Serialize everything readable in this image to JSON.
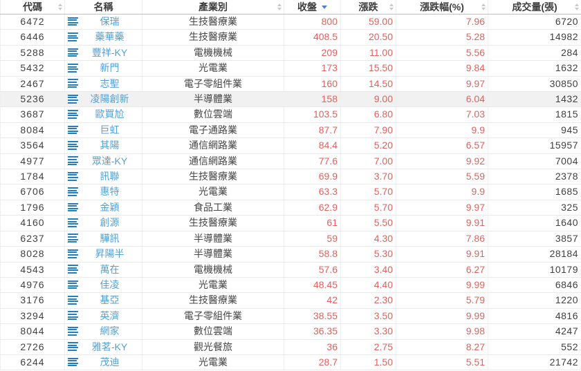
{
  "colors": {
    "name_link": "#54a0d4",
    "list_icon_blue": "#1e7ec0",
    "value_red": "#e2615c",
    "text_dark": "#404040",
    "sort_inactive": "#c9c9c9",
    "sort_active_blue": "#4f7ec1",
    "highlight_row_bg": "#f1f1f1"
  },
  "sort_state": {
    "column": "收盤",
    "direction": "desc"
  },
  "table": {
    "columns": [
      {
        "label": "代碼",
        "sortable": true,
        "active": false
      },
      {
        "label": "名稱",
        "sortable": false,
        "active": false
      },
      {
        "label": "產業別",
        "sortable": true,
        "active": false
      },
      {
        "label": "收盤",
        "sortable": true,
        "active": true
      },
      {
        "label": "漲跌",
        "sortable": true,
        "active": false
      },
      {
        "label": "漲跌幅(%)",
        "sortable": true,
        "active": false
      },
      {
        "label": "成交量(張)",
        "sortable": true,
        "active": false
      }
    ],
    "rows": [
      {
        "code": "6472",
        "name": "保瑞",
        "industry": "生技醫療業",
        "close": "800",
        "change": "59.00",
        "change_pct": "7.96",
        "volume": "6720",
        "highlighted": false
      },
      {
        "code": "6446",
        "name": "藥華藥",
        "industry": "生技醫療業",
        "close": "408.5",
        "change": "20.50",
        "change_pct": "5.28",
        "volume": "14982",
        "highlighted": false
      },
      {
        "code": "5288",
        "name": "豐祥-KY",
        "industry": "電機機械",
        "close": "209",
        "change": "11.00",
        "change_pct": "5.56",
        "volume": "284",
        "highlighted": false
      },
      {
        "code": "5432",
        "name": "新門",
        "industry": "光電業",
        "close": "173",
        "change": "15.50",
        "change_pct": "9.84",
        "volume": "1632",
        "highlighted": false
      },
      {
        "code": "2467",
        "name": "志聖",
        "industry": "電子零組件業",
        "close": "160",
        "change": "14.50",
        "change_pct": "9.97",
        "volume": "30850",
        "highlighted": false
      },
      {
        "code": "5236",
        "name": "凌陽創新",
        "industry": "半導體業",
        "close": "158",
        "change": "9.00",
        "change_pct": "6.04",
        "volume": "1432",
        "highlighted": true
      },
      {
        "code": "3687",
        "name": "歐買尬",
        "industry": "數位雲端",
        "close": "103.5",
        "change": "6.80",
        "change_pct": "7.03",
        "volume": "1815",
        "highlighted": false
      },
      {
        "code": "8084",
        "name": "巨虹",
        "industry": "電子通路業",
        "close": "87.7",
        "change": "7.90",
        "change_pct": "9.9",
        "volume": "945",
        "highlighted": false
      },
      {
        "code": "3564",
        "name": "其陽",
        "industry": "通信網路業",
        "close": "84.4",
        "change": "5.20",
        "change_pct": "6.57",
        "volume": "15957",
        "highlighted": false
      },
      {
        "code": "4977",
        "name": "眾達-KY",
        "industry": "通信網路業",
        "close": "77.6",
        "change": "7.00",
        "change_pct": "9.92",
        "volume": "7004",
        "highlighted": false
      },
      {
        "code": "1784",
        "name": "訊聯",
        "industry": "生技醫療業",
        "close": "69.9",
        "change": "3.70",
        "change_pct": "5.59",
        "volume": "2378",
        "highlighted": false
      },
      {
        "code": "6706",
        "name": "惠特",
        "industry": "光電業",
        "close": "63.3",
        "change": "5.70",
        "change_pct": "9.9",
        "volume": "1685",
        "highlighted": false
      },
      {
        "code": "1796",
        "name": "金穎",
        "industry": "食品工業",
        "close": "62.9",
        "change": "5.70",
        "change_pct": "9.97",
        "volume": "325",
        "highlighted": false
      },
      {
        "code": "4160",
        "name": "創源",
        "industry": "生技醫療業",
        "close": "61",
        "change": "5.50",
        "change_pct": "9.91",
        "volume": "1640",
        "highlighted": false
      },
      {
        "code": "6237",
        "name": "驊訊",
        "industry": "半導體業",
        "close": "59",
        "change": "4.30",
        "change_pct": "7.86",
        "volume": "3857",
        "highlighted": false
      },
      {
        "code": "8028",
        "name": "昇陽半",
        "industry": "半導體業",
        "close": "58.8",
        "change": "5.30",
        "change_pct": "9.91",
        "volume": "28184",
        "highlighted": false
      },
      {
        "code": "4543",
        "name": "萬在",
        "industry": "電機機械",
        "close": "57.6",
        "change": "3.40",
        "change_pct": "6.27",
        "volume": "10179",
        "highlighted": false
      },
      {
        "code": "4976",
        "name": "佳凌",
        "industry": "光電業",
        "close": "48.45",
        "change": "4.40",
        "change_pct": "9.99",
        "volume": "6846",
        "highlighted": false
      },
      {
        "code": "3176",
        "name": "基亞",
        "industry": "生技醫療業",
        "close": "42",
        "change": "2.30",
        "change_pct": "5.79",
        "volume": "1220",
        "highlighted": false
      },
      {
        "code": "3294",
        "name": "英濟",
        "industry": "電子零組件業",
        "close": "38.55",
        "change": "3.50",
        "change_pct": "9.99",
        "volume": "4816",
        "highlighted": false
      },
      {
        "code": "8044",
        "name": "網家",
        "industry": "數位雲端",
        "close": "36.35",
        "change": "3.30",
        "change_pct": "9.98",
        "volume": "4247",
        "highlighted": false
      },
      {
        "code": "2726",
        "name": "雅茗-KY",
        "industry": "觀光餐旅",
        "close": "36",
        "change": "2.75",
        "change_pct": "8.27",
        "volume": "552",
        "highlighted": false
      },
      {
        "code": "6244",
        "name": "茂迪",
        "industry": "光電業",
        "close": "28.7",
        "change": "1.50",
        "change_pct": "5.51",
        "volume": "21742",
        "highlighted": false
      }
    ]
  }
}
